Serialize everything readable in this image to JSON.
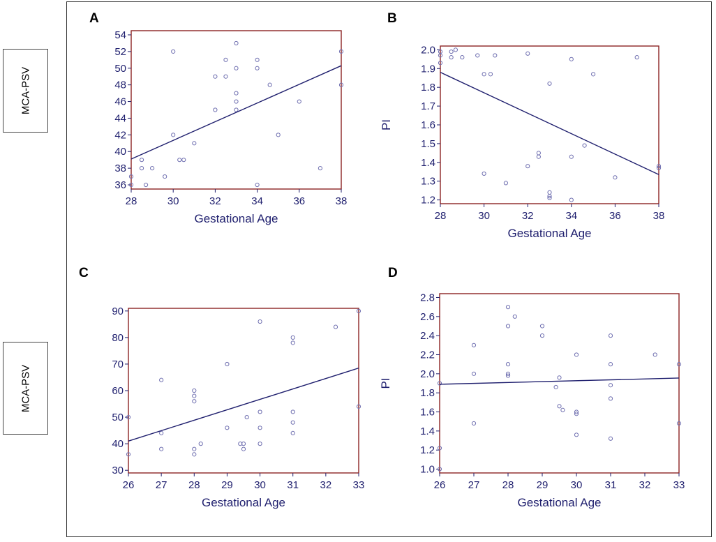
{
  "side_labels": [
    "MCA-PSV",
    "MCA-PSV"
  ],
  "colors": {
    "frame": "#8b2323",
    "points": "#6f6fb0",
    "text": "#1f1f6e",
    "line": "#1f1f6e"
  },
  "chart_data": [
    {
      "panel": "A",
      "type": "scatter",
      "xlabel": "Gestational Age",
      "ylabel": "",
      "xlim": [
        28,
        38
      ],
      "ylim": [
        35.5,
        54.5
      ],
      "xticks": [
        28,
        30,
        32,
        34,
        36,
        38
      ],
      "yticks": [
        36,
        38,
        40,
        42,
        44,
        46,
        48,
        50,
        52,
        54
      ],
      "x": [
        28,
        28,
        28.5,
        28.5,
        28.7,
        29,
        29.6,
        30,
        30,
        30.3,
        30.5,
        31,
        32,
        32,
        32.5,
        32.5,
        33,
        33,
        33,
        33,
        33,
        34,
        34,
        34,
        34.6,
        35,
        36,
        37,
        38,
        38
      ],
      "y": [
        37,
        36,
        39,
        38,
        36,
        38,
        37,
        42,
        52,
        39,
        39,
        41,
        49,
        45,
        51,
        49,
        53,
        50,
        47,
        46,
        45,
        51,
        50,
        36,
        48,
        42,
        46,
        38,
        52,
        48
      ],
      "fit_line": {
        "x": [
          28,
          38
        ],
        "y": [
          39.1,
          50.3
        ]
      }
    },
    {
      "panel": "B",
      "type": "scatter",
      "xlabel": "Gestational Age",
      "ylabel": "PI",
      "xlim": [
        28,
        38
      ],
      "ylim": [
        1.18,
        2.02
      ],
      "xticks": [
        28,
        30,
        32,
        34,
        36,
        38
      ],
      "yticks": [
        "1.2",
        "1.3",
        "1.4",
        "1.5",
        "1.6",
        "1.7",
        "1.8",
        "1.9",
        "2.0"
      ],
      "x": [
        28,
        28,
        28,
        28.5,
        28.5,
        28.7,
        29,
        29.7,
        30,
        30,
        30.3,
        30.5,
        31,
        32,
        32,
        32.5,
        32.5,
        33,
        33,
        33,
        33,
        34,
        34,
        34,
        34.6,
        35,
        36,
        37,
        38,
        38
      ],
      "y": [
        1.99,
        1.97,
        1.93,
        1.99,
        1.96,
        2.0,
        1.96,
        1.97,
        1.87,
        1.34,
        1.87,
        1.97,
        1.29,
        1.98,
        1.38,
        1.45,
        1.43,
        1.82,
        1.24,
        1.22,
        1.21,
        1.95,
        1.43,
        1.2,
        1.49,
        1.87,
        1.32,
        1.96,
        1.38,
        1.37
      ],
      "fit_line": {
        "x": [
          28,
          38
        ],
        "y": [
          1.88,
          1.335
        ]
      }
    },
    {
      "panel": "C",
      "type": "scatter",
      "xlabel": "Gestational Age",
      "ylabel": "",
      "xlim": [
        26,
        33
      ],
      "ylim": [
        29,
        91
      ],
      "xticks": [
        26,
        27,
        28,
        29,
        30,
        31,
        32,
        33
      ],
      "yticks": [
        30,
        40,
        50,
        60,
        70,
        80,
        90
      ],
      "x": [
        26,
        26,
        27,
        27,
        27,
        28,
        28,
        28,
        28,
        28,
        28.2,
        29,
        29,
        29.4,
        29.5,
        29.5,
        29.6,
        30,
        30,
        30,
        30,
        31,
        31,
        31,
        31,
        31,
        32.3,
        33,
        33
      ],
      "y": [
        50,
        36,
        64,
        44,
        38,
        60,
        58,
        56,
        38,
        36,
        40,
        70,
        46,
        40,
        40,
        38,
        50,
        86,
        52,
        46,
        40,
        80,
        78,
        52,
        48,
        44,
        84,
        90,
        54
      ],
      "fit_line": {
        "x": [
          26,
          33
        ],
        "y": [
          41,
          68.5
        ]
      }
    },
    {
      "panel": "D",
      "type": "scatter",
      "xlabel": "Gestational Age",
      "ylabel": "PI",
      "xlim": [
        26,
        33
      ],
      "ylim": [
        0.96,
        2.84
      ],
      "xticks": [
        26,
        27,
        28,
        29,
        30,
        31,
        32,
        33
      ],
      "yticks": [
        "1.0",
        "1.2",
        "1.4",
        "1.6",
        "1.8",
        "2.0",
        "2.2",
        "2.4",
        "2.6",
        "2.8"
      ],
      "x": [
        26,
        26,
        26,
        27,
        27,
        27,
        28,
        28,
        28,
        28,
        28,
        28.2,
        29,
        29,
        29.4,
        29.5,
        29.5,
        29.6,
        30,
        30,
        30,
        30,
        31,
        31,
        31,
        31,
        31,
        32.3,
        33,
        33
      ],
      "y": [
        1.9,
        1.22,
        1.0,
        2.3,
        2.0,
        1.48,
        2.7,
        2.5,
        2.1,
        2.0,
        1.98,
        2.6,
        2.5,
        2.4,
        1.86,
        1.96,
        1.66,
        1.62,
        2.2,
        1.6,
        1.58,
        1.36,
        2.4,
        2.1,
        1.88,
        1.74,
        1.32,
        2.2,
        2.1,
        1.48
      ],
      "fit_line": {
        "x": [
          26,
          33
        ],
        "y": [
          1.89,
          1.955
        ]
      }
    }
  ]
}
